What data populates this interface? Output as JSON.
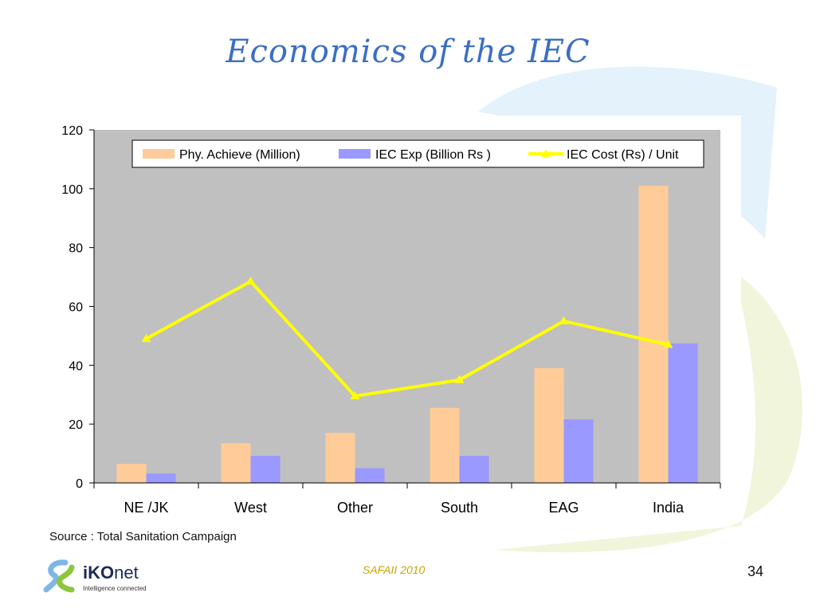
{
  "slide": {
    "title": "Economics of the IEC",
    "source": "Source : Total Sanitation Campaign",
    "footer_center": "SAFAII 2010",
    "page_number": "34",
    "logo": {
      "name_bold": "iKO",
      "name_rest": "net",
      "tagline": "Intelligence connected"
    },
    "colors": {
      "title": "#3a6fc4",
      "deco_blue": "#e3f2fb",
      "deco_green": "#f0f5dc"
    }
  },
  "chart_data": {
    "type": "bar",
    "categories": [
      "NE /JK",
      "West",
      "Other",
      "South",
      "EAG",
      "India"
    ],
    "series": [
      {
        "name": "Phy. Achieve (Million)",
        "type": "bar",
        "color": "#ffcc99",
        "values": [
          6.5,
          13.5,
          17,
          25.5,
          39,
          101
        ]
      },
      {
        "name": "IEC Exp (Billion Rs )",
        "type": "bar",
        "color": "#9999ff",
        "values": [
          3.2,
          9.2,
          5,
          9.2,
          21.6,
          47.4
        ]
      },
      {
        "name": "IEC Cost (Rs) / Unit",
        "type": "line",
        "color": "#ffff00",
        "values": [
          49,
          68.5,
          29.5,
          35,
          55,
          47
        ]
      }
    ],
    "ylim": [
      0,
      120
    ],
    "yticks": [
      0,
      20,
      40,
      60,
      80,
      100,
      120
    ],
    "grid": false,
    "legend_position": "top",
    "plot_background": "#c0c0c0"
  }
}
